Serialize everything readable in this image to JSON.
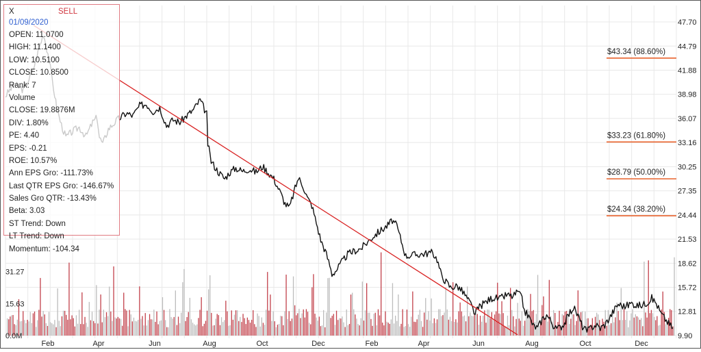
{
  "info": {
    "symbol": "X",
    "signal": "SELL",
    "date": "01/09/2020",
    "rows": [
      "OPEN: 11.0700",
      "HIGH: 11.1400",
      "LOW: 10.5100",
      "CLOSE: 10.8500",
      "Rank: 7",
      "Volume",
      "CLOSE: 19.8876M",
      "DIV: 1.80%",
      "PE: 4.40",
      "EPS: -0.21",
      "ROE: 10.57%",
      "Ann EPS Gro: -111.73%",
      "Last QTR EPS Gro: -146.67%",
      "Sales Gro QTR: -13.43%",
      "Beta: 3.03",
      "ST Trend: Down",
      "LT Trend: Down",
      "Momentum: -104.34"
    ]
  },
  "chart_data": {
    "type": "line",
    "price_axis": {
      "ticks": [
        "47.70",
        "44.79",
        "41.88",
        "38.98",
        "36.07",
        "33.16",
        "30.25",
        "27.35",
        "24.44",
        "21.53",
        "18.62",
        "15.72",
        "12.81",
        "9.90"
      ],
      "min": 9.9,
      "max": 47.7
    },
    "volume_axis": {
      "ticks": [
        "31.27",
        "15.63",
        "0.0M"
      ],
      "min": 0,
      "max": 46.9
    },
    "x_labels": [
      "Feb",
      "Apr",
      "Jun",
      "Aug",
      "Oct",
      "Dec",
      "Feb",
      "Apr",
      "Jun",
      "Aug",
      "Oct",
      "Dec"
    ],
    "fib_levels": [
      {
        "label": "$43.34 (88.60%)",
        "value": 43.34
      },
      {
        "label": "$33.23 (61.80%)",
        "value": 33.23
      },
      {
        "label": "$28.79 (50.00%)",
        "value": 28.79
      },
      {
        "label": "$24.34 (38.20%)",
        "value": 24.34
      }
    ],
    "trendline": {
      "start": {
        "month": 1.25,
        "price": 47.3
      },
      "end": {
        "month": 22.9,
        "price": 10.0
      }
    },
    "price_series": [
      [
        0.0,
        38.8
      ],
      [
        0.4,
        40.2
      ],
      [
        0.8,
        39.5
      ],
      [
        1.2,
        41.6
      ],
      [
        1.5,
        44.5
      ],
      [
        1.7,
        46.3
      ],
      [
        1.9,
        43.9
      ],
      [
        2.1,
        40.6
      ],
      [
        2.3,
        37.2
      ],
      [
        2.5,
        35.3
      ],
      [
        2.7,
        33.8
      ],
      [
        3.0,
        34.5
      ],
      [
        3.3,
        35.0
      ],
      [
        3.6,
        33.9
      ],
      [
        3.9,
        35.6
      ],
      [
        4.1,
        36.2
      ],
      [
        4.2,
        33.8
      ],
      [
        4.35,
        33.0
      ],
      [
        4.6,
        34.8
      ],
      [
        5.0,
        35.9
      ],
      [
        5.4,
        36.7
      ],
      [
        5.7,
        36.4
      ],
      [
        6.0,
        37.6
      ],
      [
        6.3,
        37.8
      ],
      [
        6.6,
        36.9
      ],
      [
        6.9,
        37.4
      ],
      [
        7.2,
        35.2
      ],
      [
        7.5,
        35.9
      ],
      [
        7.8,
        35.6
      ],
      [
        8.1,
        36.4
      ],
      [
        8.4,
        37.1
      ],
      [
        8.7,
        38.3
      ],
      [
        9.0,
        36.6
      ],
      [
        9.05,
        33.0
      ],
      [
        9.2,
        30.9
      ],
      [
        9.5,
        29.7
      ],
      [
        9.8,
        28.8
      ],
      [
        10.0,
        29.5
      ],
      [
        10.3,
        30.1
      ],
      [
        10.6,
        29.7
      ],
      [
        10.9,
        30.0
      ],
      [
        11.2,
        29.6
      ],
      [
        11.5,
        30.3
      ],
      [
        11.8,
        29.4
      ],
      [
        12.0,
        28.8
      ],
      [
        12.3,
        27.1
      ],
      [
        12.5,
        25.8
      ],
      [
        12.7,
        25.3
      ],
      [
        12.9,
        27.2
      ],
      [
        13.1,
        28.9
      ],
      [
        13.3,
        28.0
      ],
      [
        13.5,
        26.5
      ],
      [
        13.7,
        25.6
      ],
      [
        13.9,
        23.5
      ],
      [
        14.1,
        21.4
      ],
      [
        14.3,
        20.1
      ],
      [
        14.5,
        18.4
      ],
      [
        14.6,
        17.3
      ],
      [
        14.8,
        17.8
      ],
      [
        15.0,
        18.6
      ],
      [
        15.3,
        19.7
      ],
      [
        15.6,
        20.1
      ],
      [
        15.9,
        20.4
      ],
      [
        16.2,
        21.2
      ],
      [
        16.5,
        22.0
      ],
      [
        16.8,
        22.6
      ],
      [
        17.1,
        23.2
      ],
      [
        17.3,
        23.8
      ],
      [
        17.5,
        23.1
      ],
      [
        17.7,
        21.3
      ],
      [
        17.9,
        19.5
      ],
      [
        18.2,
        19.6
      ],
      [
        18.5,
        19.7
      ],
      [
        18.8,
        19.8
      ],
      [
        19.1,
        19.9
      ],
      [
        19.3,
        19.1
      ],
      [
        19.5,
        17.1
      ],
      [
        19.7,
        16.4
      ],
      [
        19.9,
        15.7
      ],
      [
        20.2,
        15.9
      ],
      [
        20.5,
        15.0
      ],
      [
        20.8,
        13.7
      ],
      [
        21.0,
        12.5
      ],
      [
        21.2,
        13.4
      ],
      [
        21.5,
        14.0
      ],
      [
        21.8,
        14.5
      ],
      [
        22.1,
        14.3
      ],
      [
        22.4,
        14.8
      ],
      [
        22.7,
        14.6
      ],
      [
        22.9,
        15.2
      ],
      [
        23.1,
        14.3
      ],
      [
        23.2,
        12.9
      ],
      [
        23.4,
        12.2
      ],
      [
        23.6,
        11.1
      ],
      [
        23.8,
        10.8
      ],
      [
        24.0,
        11.9
      ],
      [
        24.2,
        12.4
      ],
      [
        24.4,
        11.6
      ],
      [
        24.6,
        10.7
      ],
      [
        24.8,
        10.9
      ],
      [
        25.0,
        11.4
      ],
      [
        25.2,
        12.5
      ],
      [
        25.4,
        13.3
      ],
      [
        25.6,
        12.3
      ],
      [
        25.8,
        11.0
      ],
      [
        26.0,
        10.4
      ],
      [
        26.2,
        10.9
      ],
      [
        26.4,
        11.2
      ],
      [
        26.6,
        10.8
      ],
      [
        26.8,
        11.2
      ],
      [
        27.0,
        12.0
      ],
      [
        27.2,
        12.9
      ],
      [
        27.4,
        13.7
      ],
      [
        27.7,
        13.4
      ],
      [
        28.0,
        13.8
      ],
      [
        28.3,
        13.5
      ],
      [
        28.6,
        13.7
      ],
      [
        28.9,
        14.4
      ],
      [
        29.1,
        13.8
      ],
      [
        29.3,
        12.6
      ],
      [
        29.5,
        11.9
      ],
      [
        29.7,
        11.2
      ],
      [
        29.85,
        10.85
      ]
    ]
  }
}
